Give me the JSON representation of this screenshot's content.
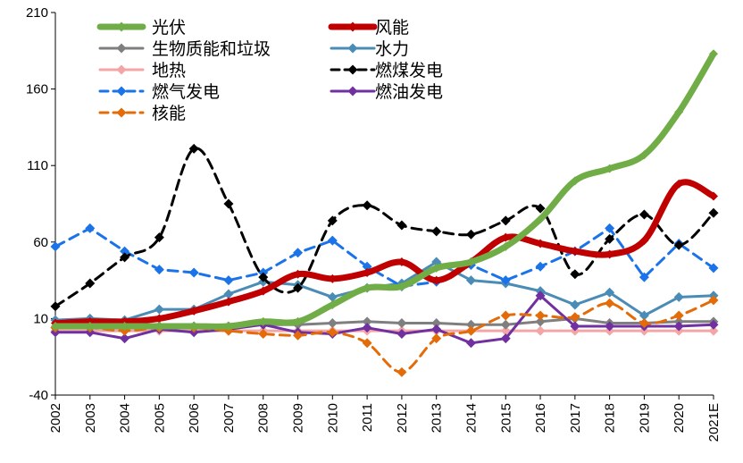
{
  "chart_data": {
    "type": "line",
    "title": "",
    "xlabel": "",
    "ylabel": "",
    "ylim": [
      -40,
      210
    ],
    "yticks": [
      -40,
      10,
      60,
      110,
      160,
      210
    ],
    "grid": false,
    "legend_position": "top-left",
    "categories": [
      "2002",
      "2003",
      "2004",
      "2005",
      "2006",
      "2007",
      "2008",
      "2009",
      "2010",
      "2011",
      "2012",
      "2013",
      "2014",
      "2015",
      "2016",
      "2017",
      "2018",
      "2019",
      "2020",
      "2021E"
    ],
    "series": [
      {
        "name": "光伏",
        "color": "#70ad47",
        "style": "solid",
        "smooth": true,
        "width": "thick",
        "values": [
          5,
          5,
          5,
          5,
          5,
          5,
          8,
          8,
          19,
          30,
          31,
          43,
          47,
          57,
          75,
          100,
          108,
          117,
          145,
          183
        ]
      },
      {
        "name": "风能",
        "color": "#c00000",
        "style": "solid",
        "smooth": true,
        "width": "thick",
        "values": [
          7,
          8,
          8,
          10,
          15,
          21,
          28,
          39,
          36,
          40,
          47,
          35,
          47,
          63,
          59,
          54,
          52,
          61,
          98,
          90
        ]
      },
      {
        "name": "生物质能和垃圾",
        "color": "#7f7f7f",
        "style": "solid",
        "smooth": false,
        "values": [
          4,
          4,
          4,
          5,
          5,
          5,
          6,
          6,
          7,
          8,
          7,
          7,
          6,
          6,
          8,
          10,
          7,
          7,
          8,
          8
        ]
      },
      {
        "name": "水力",
        "color": "#4a8cb5",
        "style": "solid",
        "smooth": false,
        "values": [
          9,
          10,
          9,
          16,
          16,
          26,
          34,
          32,
          24,
          30,
          33,
          47,
          35,
          33,
          28,
          19,
          27,
          12,
          24,
          25
        ]
      },
      {
        "name": "地热",
        "color": "#f4a6a6",
        "style": "solid",
        "smooth": false,
        "values": [
          2,
          2,
          2,
          2,
          2,
          2,
          2,
          2,
          2,
          2,
          2,
          2,
          2,
          2,
          2,
          2,
          2,
          2,
          2,
          2
        ]
      },
      {
        "name": "燃煤发电",
        "color": "#000000",
        "style": "dashed",
        "smooth": true,
        "values": [
          18,
          33,
          50,
          63,
          121,
          85,
          37,
          30,
          74,
          84,
          71,
          67,
          65,
          74,
          82,
          39,
          62,
          78,
          58,
          79
        ]
      },
      {
        "name": "燃气发电",
        "color": "#1a73e8",
        "style": "dashed",
        "smooth": false,
        "values": [
          57,
          69,
          54,
          42,
          40,
          35,
          40,
          53,
          61,
          44,
          31,
          34,
          45,
          35,
          44,
          54,
          69,
          37,
          59,
          43
        ]
      },
      {
        "name": "燃油发电",
        "color": "#7030a0",
        "style": "solid",
        "smooth": false,
        "values": [
          1,
          1,
          -3,
          3,
          1,
          3,
          6,
          1,
          0,
          4,
          0,
          3,
          -6,
          -3,
          25,
          5,
          5,
          5,
          5,
          6
        ]
      },
      {
        "name": "核能",
        "color": "#e36c09",
        "style": "dashed",
        "smooth": true,
        "values": [
          4,
          4,
          2,
          4,
          4,
          2,
          0,
          -1,
          1,
          -6,
          -25,
          -3,
          2,
          12,
          12,
          11,
          20,
          7,
          12,
          22
        ]
      }
    ]
  }
}
